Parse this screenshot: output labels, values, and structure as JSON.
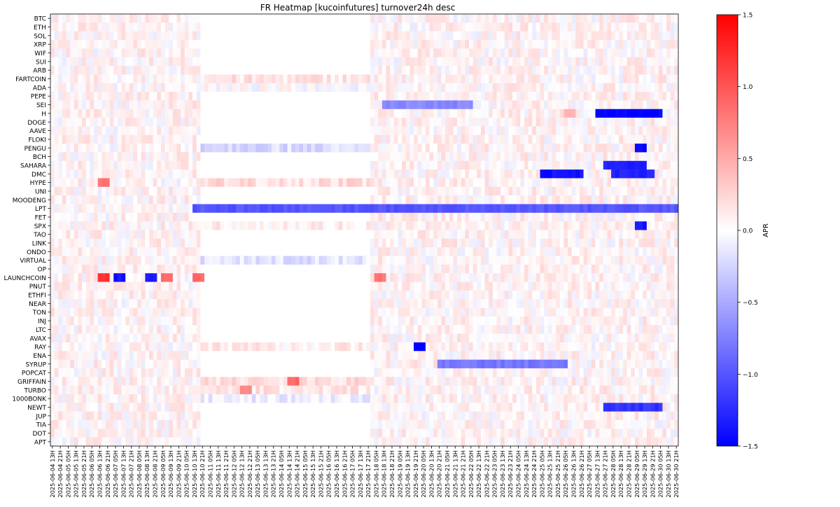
{
  "chart_data": {
    "type": "heatmap",
    "title": "FR Heatmap [kucoinfutures] turnover24h desc",
    "xlabel": "",
    "ylabel": "",
    "colorbar": {
      "label": "APR",
      "colormap": "bwr",
      "vmin": -1.5,
      "vmax": 1.5,
      "ticks": [
        1.5,
        1.0,
        0.5,
        0.0,
        -0.5,
        -1.0,
        -1.5
      ],
      "tick_labels": [
        "1.5",
        "1.0",
        "0.5",
        "0.0",
        "−0.5",
        "−1.0",
        "−1.5"
      ]
    },
    "columns": {
      "start": "2025-06-04 13H",
      "step_hours": 4,
      "count": 159,
      "labeled_every": 2
    },
    "rows": [
      "BTC",
      "ETH",
      "SOL",
      "XRP",
      "WIF",
      "SUI",
      "ARB",
      "FARTCOIN",
      "ADA",
      "PEPE",
      "SEI",
      "H",
      "DOGE",
      "AAVE",
      "FLOKI",
      "PENGU",
      "BCH",
      "SAHARA",
      "DMC",
      "HYPE",
      "UNI",
      "MOODENG",
      "LPT",
      "FET",
      "SPX",
      "TAO",
      "LINK",
      "ONDO",
      "VIRTUAL",
      "OP",
      "LAUNCHCOIN",
      "PNUT",
      "ETHFI",
      "NEAR",
      "TON",
      "INJ",
      "LTC",
      "AVAX",
      "RAY",
      "ENA",
      "SYRUP",
      "POPCAT",
      "GRIFFAIN",
      "TURBO",
      "1000BONK",
      "NEWT",
      "JUP",
      "TIA",
      "DOT",
      "APT"
    ],
    "x_tick_labels": [
      "2025-06-04 13H",
      "2025-06-04 21H",
      "2025-06-05 05H",
      "2025-06-05 13H",
      "2025-06-05 21H",
      "2025-06-06 05H",
      "2025-06-06 13H",
      "2025-06-06 21H",
      "2025-06-07 05H",
      "2025-06-07 13H",
      "2025-06-07 21H",
      "2025-06-08 05H",
      "2025-06-08 13H",
      "2025-06-08 21H",
      "2025-06-09 05H",
      "2025-06-09 13H",
      "2025-06-09 21H",
      "2025-06-10 05H",
      "2025-06-10 13H",
      "2025-06-10 21H",
      "2025-06-11 05H",
      "2025-06-11 13H",
      "2025-06-11 21H",
      "2025-06-12 05H",
      "2025-06-12 13H",
      "2025-06-12 21H",
      "2025-06-13 05H",
      "2025-06-13 13H",
      "2025-06-13 21H",
      "2025-06-14 05H",
      "2025-06-14 13H",
      "2025-06-14 21H",
      "2025-06-15 05H",
      "2025-06-15 13H",
      "2025-06-15 21H",
      "2025-06-16 05H",
      "2025-06-16 13H",
      "2025-06-16 21H",
      "2025-06-17 05H",
      "2025-06-17 13H",
      "2025-06-17 21H",
      "2025-06-18 05H",
      "2025-06-18 13H",
      "2025-06-18 21H",
      "2025-06-19 05H",
      "2025-06-19 13H",
      "2025-06-19 21H",
      "2025-06-20 05H",
      "2025-06-20 13H",
      "2025-06-20 21H",
      "2025-06-21 05H",
      "2025-06-21 13H",
      "2025-06-21 21H",
      "2025-06-22 05H",
      "2025-06-22 13H",
      "2025-06-22 21H",
      "2025-06-23 05H",
      "2025-06-23 13H",
      "2025-06-23 21H",
      "2025-06-24 05H",
      "2025-06-24 13H",
      "2025-06-24 21H",
      "2025-06-25 05H",
      "2025-06-25 13H",
      "2025-06-25 21H",
      "2025-06-26 05H",
      "2025-06-26 13H",
      "2025-06-26 21H",
      "2025-06-27 05H",
      "2025-06-27 13H",
      "2025-06-27 21H",
      "2025-06-28 05H",
      "2025-06-28 13H",
      "2025-06-28 21H",
      "2025-06-29 05H",
      "2025-06-29 13H",
      "2025-06-29 21H",
      "2025-06-30 05H",
      "2025-06-30 13H",
      "2025-06-30 21H"
    ],
    "approximate_values": {
      "note_excluded": true,
      "segments": [
        {
          "row": "LPT",
          "from": "2025-06-10 13H",
          "to": "2025-06-30 21H",
          "value": -1.0
        },
        {
          "row": "H",
          "from": "2025-06-26 05H",
          "to": "2025-06-26 13H",
          "value": 0.5
        },
        {
          "row": "H",
          "from": "2025-06-27 13H",
          "to": "2025-06-30 05H",
          "value": -1.5
        },
        {
          "row": "DMC",
          "from": "2025-06-25 05H",
          "to": "2025-06-26 21H",
          "value": -1.4
        },
        {
          "row": "DMC",
          "from": "2025-06-28 05H",
          "to": "2025-06-29 21H",
          "value": -1.3
        },
        {
          "row": "SAHARA",
          "from": "2025-06-27 21H",
          "to": "2025-06-29 13H",
          "value": -1.3
        },
        {
          "row": "NEWT",
          "from": "2025-06-27 21H",
          "to": "2025-06-30 05H",
          "value": -1.2
        },
        {
          "row": "SYRUP",
          "from": "2025-06-20 21H",
          "to": "2025-06-26 05H",
          "value": -0.8
        },
        {
          "row": "SEI",
          "from": "2025-06-18 13H",
          "to": "2025-06-22 05H",
          "value": -0.7
        },
        {
          "row": "PENGU",
          "from": "2025-06-29 05H",
          "to": "2025-06-29 13H",
          "value": -1.5
        },
        {
          "row": "SPX",
          "from": "2025-06-29 05H",
          "to": "2025-06-29 13H",
          "value": -1.4
        },
        {
          "row": "RAY",
          "from": "2025-06-19 21H",
          "to": "2025-06-20 05H",
          "value": -1.5
        },
        {
          "row": "LAUNCHCOIN",
          "from": "2025-06-06 13H",
          "to": "2025-06-06 21H",
          "value": 1.2
        },
        {
          "row": "LAUNCHCOIN",
          "from": "2025-06-07 05H",
          "to": "2025-06-07 13H",
          "value": -1.4
        },
        {
          "row": "LAUNCHCOIN",
          "from": "2025-06-08 13H",
          "to": "2025-06-08 21H",
          "value": -1.4
        },
        {
          "row": "LAUNCHCOIN",
          "from": "2025-06-09 05H",
          "to": "2025-06-09 13H",
          "value": 0.9
        },
        {
          "row": "LAUNCHCOIN",
          "from": "2025-06-10 13H",
          "to": "2025-06-10 21H",
          "value": 0.9
        },
        {
          "row": "LAUNCHCOIN",
          "from": "2025-06-18 05H",
          "to": "2025-06-18 13H",
          "value": 0.8
        },
        {
          "row": "HYPE",
          "from": "2025-06-06 13H",
          "to": "2025-06-06 21H",
          "value": 0.8
        },
        {
          "row": "GRIFFAIN",
          "from": "2025-06-14 13H",
          "to": "2025-06-14 21H",
          "value": 0.9
        },
        {
          "row": "TURBO",
          "from": "2025-06-12 13H",
          "to": "2025-06-12 21H",
          "value": 0.7
        }
      ],
      "blank_gap": {
        "from": "2025-06-10 21H",
        "to": "2025-06-17 21H",
        "value": 0.0
      }
    }
  }
}
